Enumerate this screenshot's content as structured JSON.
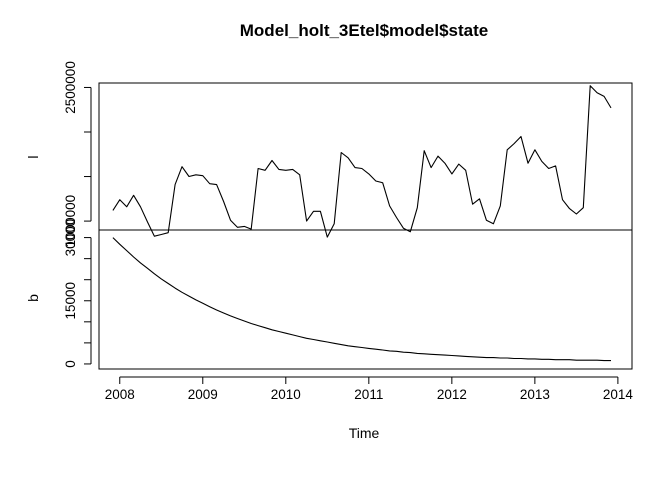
{
  "chart_data": {
    "type": "line",
    "title": "Model_holt_3Etel$model$state",
    "xlabel": "Time",
    "x_ticks": [
      "2008",
      "2009",
      "2010",
      "2011",
      "2012",
      "2013",
      "2014"
    ],
    "x_range": [
      2007.75,
      2014.17
    ],
    "panels": [
      {
        "ylabel": "l",
        "y_ticks": [
          {
            "value": 1000000,
            "label": "1000000"
          },
          {
            "value": 2500000,
            "label": "2500000"
          }
        ],
        "y_minor_ticks": [
          1500000,
          2000000
        ],
        "ylim": [
          900000,
          2550000
        ],
        "series": [
          {
            "x_start": 2007.917,
            "x_step": 0.08333,
            "values": [
              1120000,
              1240000,
              1160000,
              1290000,
              1160000,
              990000,
              830000,
              850000,
              870000,
              1410000,
              1610000,
              1500000,
              1520000,
              1510000,
              1420000,
              1410000,
              1220000,
              1010000,
              930000,
              940000,
              910000,
              1590000,
              1570000,
              1680000,
              1580000,
              1570000,
              1580000,
              1520000,
              1000000,
              1110000,
              1110000,
              820000,
              970000,
              1770000,
              1710000,
              1600000,
              1590000,
              1530000,
              1450000,
              1430000,
              1170000,
              1040000,
              920000,
              880000,
              1150000,
              1790000,
              1600000,
              1730000,
              1650000,
              1530000,
              1640000,
              1570000,
              1190000,
              1250000,
              1010000,
              970000,
              1170000,
              1800000,
              1870000,
              1950000,
              1650000,
              1800000,
              1670000,
              1590000,
              1620000,
              1240000,
              1140000,
              1080000,
              1150000,
              2520000,
              2440000,
              2400000,
              2270000
            ]
          }
        ]
      },
      {
        "ylabel": "b",
        "y_ticks": [
          {
            "value": 0,
            "label": "0"
          },
          {
            "value": 15000,
            "label": "15000"
          },
          {
            "value": 30000,
            "label": "30000"
          }
        ],
        "y_minor_ticks": [
          5000,
          10000,
          20000,
          25000
        ],
        "ylim": [
          -1200,
          31800
        ],
        "series": [
          {
            "x_start": 2007.917,
            "x_step": 0.08333,
            "values": [
              30000,
              28400,
              26900,
              25400,
              24000,
              22700,
              21400,
              20200,
              19100,
              18000,
              17000,
              16100,
              15200,
              14400,
              13600,
              12800,
              12100,
              11400,
              10800,
              10200,
              9600,
              9100,
              8600,
              8100,
              7700,
              7300,
              6900,
              6500,
              6100,
              5800,
              5500,
              5200,
              4900,
              4600,
              4300,
              4100,
              3900,
              3700,
              3500,
              3300,
              3100,
              3000,
              2800,
              2700,
              2500,
              2400,
              2300,
              2200,
              2100,
              2000,
              1900,
              1800,
              1700,
              1600,
              1500,
              1500,
              1400,
              1400,
              1300,
              1300,
              1200,
              1200,
              1100,
              1100,
              1000,
              1000,
              1000,
              900,
              900,
              900,
              900,
              800,
              800
            ]
          }
        ]
      }
    ],
    "grid": false,
    "legend": "none"
  }
}
